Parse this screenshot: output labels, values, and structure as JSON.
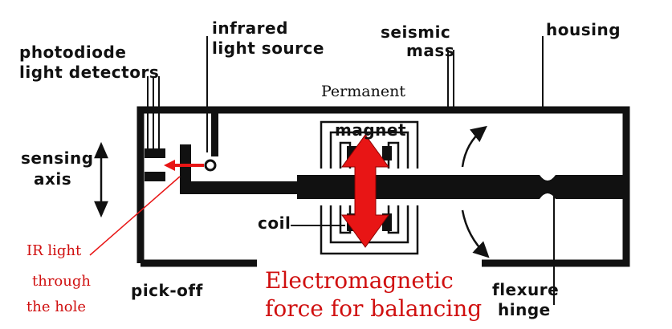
{
  "labels": {
    "photodiode_line1": "photodiode",
    "photodiode_line2": "light detectors",
    "infrared_line1": "infrared",
    "infrared_line2": "light source",
    "seismic_line1": "seismic",
    "seismic_line2": "mass",
    "housing": "housing",
    "permanent": "Permanent",
    "magnet": "magnet",
    "sensing_line1": "sensing",
    "sensing_line2": "axis",
    "coil": "coil",
    "pickoff": "pick-off",
    "flexure_line1": "flexure",
    "flexure_line2": "hinge"
  },
  "annotations": {
    "ir_line1": "IR light",
    "ir_line2": "through",
    "ir_line3": "the hole",
    "em_line1": "Electromagnetic",
    "em_line2": "force for balancing"
  },
  "colors": {
    "ink": "#111111",
    "accent": "#e81515",
    "annotation_text": "#d01010"
  }
}
